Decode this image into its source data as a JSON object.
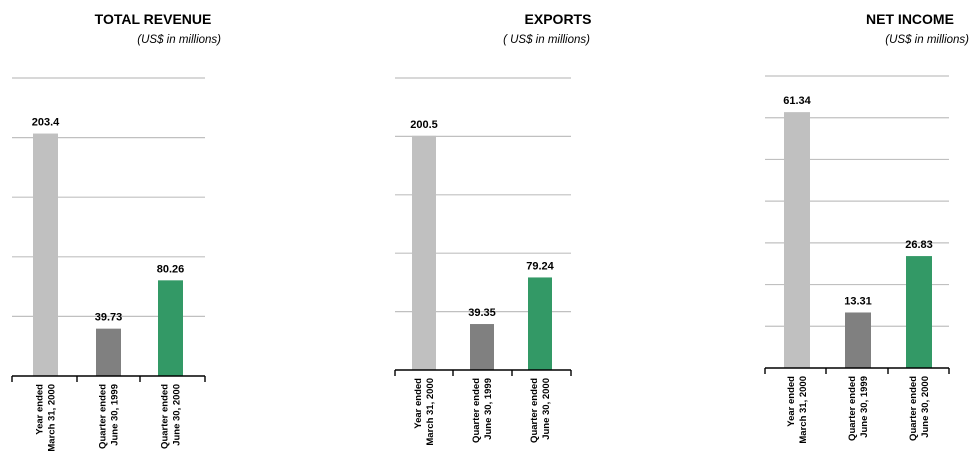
{
  "colors": {
    "gridline": "#c0c0c0",
    "axis": "#000000",
    "bars": [
      "#c0c0c0",
      "#808080",
      "#339966"
    ]
  },
  "chart_data": [
    {
      "type": "bar",
      "title": "TOTAL REVENUE",
      "subtitle": "(US$ in millions)",
      "categories": [
        [
          "Year ended",
          "March 31, 2000"
        ],
        [
          "Quarter ended",
          "June 30, 1999"
        ],
        [
          "Quarter ended",
          "June 30, 2000"
        ]
      ],
      "values": [
        203.4,
        39.73,
        80.26
      ],
      "value_labels": [
        "203.4",
        "39.73",
        "80.26"
      ],
      "ylim": [
        0,
        250
      ],
      "grid": true
    },
    {
      "type": "bar",
      "title": "EXPORTS",
      "subtitle": "( US$ in millions)",
      "categories": [
        [
          "Year ended",
          "March 31, 2000"
        ],
        [
          "Quarter ended",
          "June 30, 1999"
        ],
        [
          "Quarter ended",
          "June 30, 2000"
        ]
      ],
      "values": [
        200.5,
        39.35,
        79.24
      ],
      "value_labels": [
        "200.5",
        "39.35",
        "79.24"
      ],
      "ylim": [
        0,
        250
      ],
      "grid": true
    },
    {
      "type": "bar",
      "title": "NET INCOME",
      "subtitle": "(US$ in millions)",
      "categories": [
        [
          "Year ended",
          "March 31, 2000"
        ],
        [
          "Quarter ended",
          "June 30, 1999"
        ],
        [
          "Quarter ended",
          "June 30, 2000"
        ]
      ],
      "values": [
        61.34,
        13.31,
        26.83
      ],
      "value_labels": [
        "61.34",
        "13.31",
        "26.83"
      ],
      "ylim": [
        0,
        70
      ],
      "grid": true
    }
  ]
}
